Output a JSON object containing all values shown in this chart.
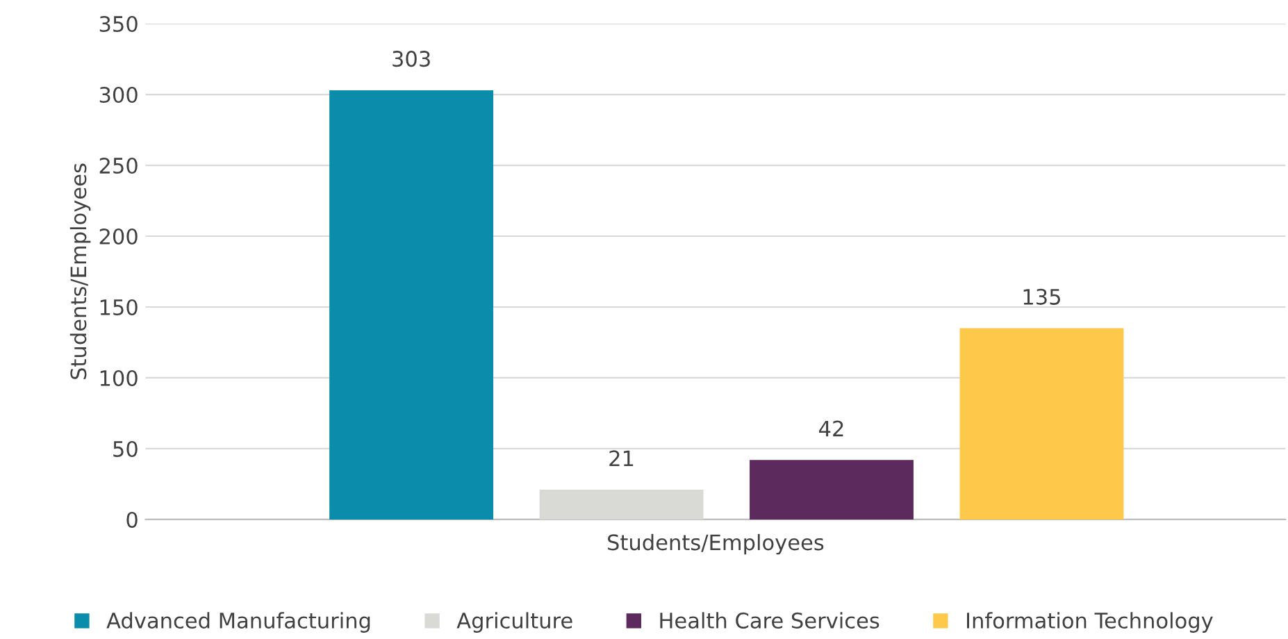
{
  "chart_data": {
    "type": "bar",
    "ylabel": "Students/Employees",
    "xlabel": "Students/Employees",
    "categories": [
      null,
      null,
      null,
      null
    ],
    "series": [
      {
        "name": "Advanced Manufacturing",
        "color": "#0b8caa",
        "values": [
          303,
          null,
          null,
          null
        ]
      },
      {
        "name": "Agriculture",
        "color": "#d9d9d5",
        "values": [
          null,
          21,
          null,
          null
        ]
      },
      {
        "name": "Health Care Services",
        "color": "#5c2a5d",
        "values": [
          null,
          null,
          42,
          null
        ]
      },
      {
        "name": "Information Technology",
        "color": "#fec84b",
        "values": [
          null,
          null,
          null,
          135
        ]
      }
    ],
    "ylim": [
      0,
      350
    ],
    "yticks": [
      0,
      50,
      100,
      150,
      200,
      250,
      300,
      350
    ],
    "grid": "y",
    "legend": "bottom",
    "data_labels": true
  }
}
